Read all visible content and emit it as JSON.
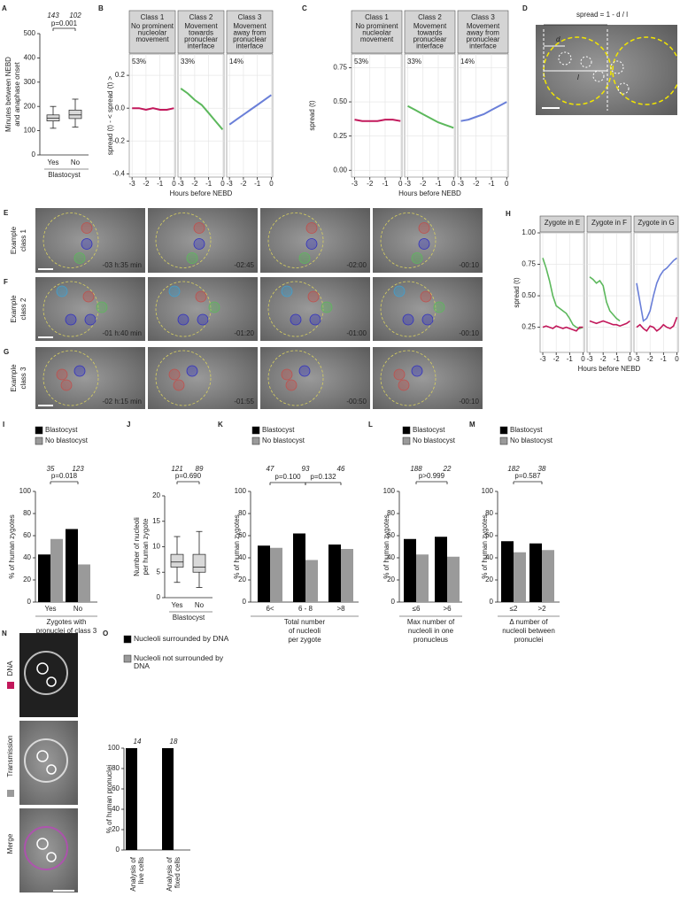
{
  "panels": {
    "A": {
      "letter": "A",
      "ylabel": [
        "Minutes between NEBD",
        "and anaphase onset"
      ],
      "xlabel": "Blastocyst",
      "categories": [
        "Yes",
        "No"
      ],
      "n": [
        143,
        102
      ],
      "p": "p=0.001",
      "ylim": [
        0,
        500
      ],
      "yticks": [
        0,
        100,
        200,
        300,
        400,
        500
      ],
      "boxes": [
        {
          "min": 110,
          "q1": 140,
          "median": 152,
          "q3": 165,
          "max": 200
        },
        {
          "min": 115,
          "q1": 150,
          "median": 165,
          "q3": 185,
          "max": 230
        }
      ]
    },
    "B": {
      "letter": "B",
      "ylabel": "spread (t) - < spread (t) >",
      "xlabel": "Hours before NEBD",
      "xlim": [
        -3.2,
        0.1
      ],
      "ylim": [
        -0.42,
        0.33
      ],
      "xticks": [
        -3,
        -2,
        -1,
        0
      ],
      "yticks": [
        -0.4,
        -0.2,
        {
          "value": 0,
          "label": "0.0"
        },
        0.2
      ],
      "facets": [
        {
          "title": "Class 1",
          "subtitle": [
            "No prominent",
            "nucleolar",
            "movement"
          ],
          "percent": "53%",
          "series": [
            {
              "color": "#c2185b",
              "x": [
                -3,
                -2.5,
                -2,
                -1.5,
                -1,
                -0.5,
                0
              ],
              "values": [
                0.0,
                0.0,
                -0.01,
                0.0,
                -0.01,
                -0.01,
                0.0
              ]
            }
          ]
        },
        {
          "title": "Class 2",
          "subtitle": [
            "Movement",
            "towards",
            "pronuclear",
            "interface"
          ],
          "percent": "33%",
          "series": [
            {
              "color": "#5cb85c",
              "x": [
                -3,
                -2.5,
                -2,
                -1.5,
                -1,
                -0.5,
                0
              ],
              "values": [
                0.12,
                0.09,
                0.05,
                0.02,
                -0.03,
                -0.08,
                -0.13
              ]
            }
          ]
        },
        {
          "title": "Class 3",
          "subtitle": [
            "Movement",
            "away from",
            "pronuclear",
            "interface"
          ],
          "percent": "14%",
          "series": [
            {
              "color": "#6a7fd8",
              "x": [
                -3,
                -2.5,
                -2,
                -1.5,
                -1,
                -0.5,
                0
              ],
              "values": [
                -0.1,
                -0.07,
                -0.04,
                -0.01,
                0.02,
                0.05,
                0.08
              ]
            }
          ]
        }
      ]
    },
    "C": {
      "letter": "C",
      "ylabel": "spread (t)",
      "xlabel": "Hours before NEBD",
      "xlim": [
        -3.2,
        0.1
      ],
      "ylim": [
        -0.05,
        0.85
      ],
      "xticks": [
        -3,
        -2,
        -1,
        0
      ],
      "yticks": [
        {
          "value": 0,
          "label": "0.00"
        },
        0.25,
        {
          "value": 0.5,
          "label": "0.50"
        },
        0.75
      ],
      "facets": [
        {
          "title": "Class 1",
          "subtitle": [
            "No prominent",
            "nucleolar",
            "movement"
          ],
          "percent": "53%",
          "series": [
            {
              "color": "#c2185b",
              "x": [
                -3,
                -2.5,
                -2,
                -1.5,
                -1,
                -0.5,
                0
              ],
              "values": [
                0.37,
                0.36,
                0.36,
                0.36,
                0.37,
                0.37,
                0.36
              ]
            }
          ]
        },
        {
          "title": "Class 2",
          "subtitle": [
            "Movement",
            "towards",
            "pronuclear",
            "interface"
          ],
          "percent": "33%",
          "series": [
            {
              "color": "#5cb85c",
              "x": [
                -3,
                -2.5,
                -2,
                -1.5,
                -1,
                -0.5,
                0
              ],
              "values": [
                0.47,
                0.44,
                0.41,
                0.38,
                0.35,
                0.33,
                0.31
              ]
            }
          ]
        },
        {
          "title": "Class 3",
          "subtitle": [
            "Movement",
            "away from",
            "pronuclear",
            "interface"
          ],
          "percent": "14%",
          "series": [
            {
              "color": "#6a7fd8",
              "x": [
                -3,
                -2.5,
                -2,
                -1.5,
                -1,
                -0.5,
                0
              ],
              "values": [
                0.36,
                0.37,
                0.39,
                0.41,
                0.44,
                0.47,
                0.5
              ]
            }
          ]
        }
      ]
    },
    "D": {
      "letter": "D",
      "formula": "spread = 1 - d / l",
      "d": "d",
      "l": "l"
    },
    "E": {
      "letter": "E",
      "label": [
        "Example",
        "class 1"
      ],
      "label_color": "#c2185b",
      "timestamps": [
        "-03 h:35 min",
        "-02:45",
        "-02:00",
        "-00:10"
      ]
    },
    "F": {
      "letter": "F",
      "label": [
        "Example",
        "class 2"
      ],
      "label_color": "#5cb85c",
      "timestamps": [
        "-01 h:40 min",
        "-01:20",
        "-01:00",
        "-00:10"
      ]
    },
    "G": {
      "letter": "G",
      "label": [
        "Example",
        "class 3"
      ],
      "label_color": "#6a7fd8",
      "timestamps": [
        "-02 h:15 min",
        "-01:55",
        "-00:50",
        "-00:10"
      ]
    },
    "H": {
      "letter": "H",
      "ylabel": "spread (t)",
      "xlabel": "Hours before NEBD",
      "xlim": [
        -3.2,
        0.1
      ],
      "ylim": [
        0.05,
        1.0
      ],
      "xticks": [
        -3,
        -2,
        -1,
        0
      ],
      "yticks": [
        0.25,
        {
          "value": 0.5,
          "label": "0.50"
        },
        0.75,
        {
          "value": 1,
          "label": "1.00"
        }
      ],
      "facets": [
        {
          "title": "Zygote in E",
          "series": [
            {
              "color": "#5cb85c",
              "x": [
                -3,
                -2.75,
                -2.5,
                -2.25,
                -2,
                -1.75,
                -1.5,
                -1.25,
                -1,
                -0.75,
                -0.5,
                -0.25,
                0
              ],
              "values": [
                0.8,
                0.72,
                0.62,
                0.5,
                0.42,
                0.4,
                0.38,
                0.36,
                0.32,
                0.27,
                0.25,
                0.24,
                0.25
              ]
            },
            {
              "color": "#c2185b",
              "x": [
                -3,
                -2.75,
                -2.5,
                -2.25,
                -2,
                -1.75,
                -1.5,
                -1.25,
                -1,
                -0.75,
                -0.5,
                -0.25,
                0
              ],
              "values": [
                0.25,
                0.26,
                0.25,
                0.24,
                0.26,
                0.25,
                0.24,
                0.25,
                0.24,
                0.23,
                0.22,
                0.25,
                0.25
              ]
            }
          ]
        },
        {
          "title": "Zygote in F",
          "series": [
            {
              "color": "#5cb85c",
              "x": [
                -3,
                -2.75,
                -2.5,
                -2.25,
                -2,
                -1.75,
                -1.5,
                -1.25,
                -1,
                -0.75,
                -0.5,
                -0.25,
                0
              ],
              "values": [
                0.65,
                0.63,
                0.6,
                0.62,
                0.58,
                0.45,
                0.38,
                0.35,
                0.32,
                0.3,
                null,
                null,
                null
              ]
            },
            {
              "color": "#c2185b",
              "x": [
                -3,
                -2.75,
                -2.5,
                -2.25,
                -2,
                -1.75,
                -1.5,
                -1.25,
                -1,
                -0.75,
                -0.5,
                -0.25,
                0
              ],
              "values": [
                0.3,
                0.29,
                0.28,
                0.29,
                0.3,
                0.29,
                0.28,
                0.27,
                0.27,
                0.26,
                0.27,
                0.28,
                0.3
              ]
            }
          ]
        },
        {
          "title": "Zygote in G",
          "series": [
            {
              "color": "#6a7fd8",
              "x": [
                -3,
                -2.75,
                -2.5,
                -2.25,
                -2,
                -1.75,
                -1.5,
                -1.25,
                -1,
                -0.75,
                -0.5,
                -0.25,
                0
              ],
              "values": [
                0.6,
                0.45,
                0.3,
                0.32,
                0.38,
                0.5,
                0.6,
                0.66,
                0.7,
                0.72,
                0.75,
                0.78,
                0.8
              ]
            },
            {
              "color": "#c2185b",
              "x": [
                -3,
                -2.75,
                -2.5,
                -2.25,
                -2,
                -1.75,
                -1.5,
                -1.25,
                -1,
                -0.75,
                -0.5,
                -0.25,
                0
              ],
              "values": [
                0.25,
                0.27,
                0.24,
                0.22,
                0.26,
                0.25,
                0.22,
                0.24,
                0.27,
                0.25,
                0.24,
                0.26,
                0.33
              ]
            }
          ]
        }
      ]
    },
    "I": {
      "letter": "I",
      "ylabel": "% of human zygotes",
      "xlabel": [
        "Zygotes with",
        "pronuclei of class 3"
      ],
      "categories": [
        "Yes",
        "No"
      ],
      "n": [
        35,
        123
      ],
      "p": [
        "p=0.018"
      ],
      "ylim": [
        0,
        100
      ],
      "yticks": [
        0,
        20,
        40,
        60,
        80,
        100
      ],
      "series": [
        {
          "name": "Blastocyst",
          "color": "#000000",
          "values": [
            43,
            66
          ]
        },
        {
          "name": "No blastocyst",
          "color": "#9a9a9a",
          "values": [
            57,
            34
          ]
        }
      ]
    },
    "J": {
      "letter": "J",
      "ylabel": [
        "Number of nucleoli",
        "per human zygote"
      ],
      "xlabel": "Blastocyst",
      "categories": [
        "Yes",
        "No"
      ],
      "n": [
        121,
        89
      ],
      "p": "p=0.690",
      "ylim": [
        0,
        20
      ],
      "yticks": [
        0,
        5,
        10,
        15,
        20
      ],
      "boxes": [
        {
          "min": 3,
          "q1": 6,
          "median": 7,
          "q3": 8.5,
          "max": 12
        },
        {
          "min": 2,
          "q1": 5,
          "median": 6,
          "q3": 8.5,
          "max": 13
        }
      ]
    },
    "K": {
      "letter": "K",
      "ylabel": "% of human zygotes",
      "xlabel": [
        "Total number",
        "of nucleoli",
        "per zygote"
      ],
      "categories": [
        "6<",
        "6 - 8",
        ">8"
      ],
      "n": [
        47,
        93,
        46
      ],
      "p": [
        "p=0.100",
        "p=0.132"
      ],
      "ylim": [
        0,
        100
      ],
      "yticks": [
        0,
        20,
        40,
        60,
        80,
        100
      ],
      "series": [
        {
          "name": "Blastocyst",
          "color": "#000000",
          "values": [
            51,
            62,
            52
          ]
        },
        {
          "name": "No blastocyst",
          "color": "#9a9a9a",
          "values": [
            49,
            38,
            48
          ]
        }
      ]
    },
    "L": {
      "letter": "L",
      "ylabel": "% of human zygotes",
      "xlabel": [
        "Max number of",
        "nucleoli in one",
        "pronucleus"
      ],
      "categories": [
        "≤6",
        ">6"
      ],
      "n": [
        188,
        22
      ],
      "p": [
        "p>0.999"
      ],
      "ylim": [
        0,
        100
      ],
      "yticks": [
        0,
        20,
        40,
        60,
        80,
        100
      ],
      "series": [
        {
          "name": "Blastocyst",
          "color": "#000000",
          "values": [
            57,
            59
          ]
        },
        {
          "name": "No blastocyst",
          "color": "#9a9a9a",
          "values": [
            43,
            41
          ]
        }
      ]
    },
    "M": {
      "letter": "M",
      "ylabel": "% of human zygotes",
      "xlabel": [
        "Δ number of",
        "nucleoli between",
        "pronuclei"
      ],
      "categories": [
        "≤2",
        ">2"
      ],
      "n": [
        182,
        38
      ],
      "p": [
        "p=0.587"
      ],
      "ylim": [
        0,
        100
      ],
      "yticks": [
        0,
        20,
        40,
        60,
        80,
        100
      ],
      "series": [
        {
          "name": "Blastocyst",
          "color": "#000000",
          "values": [
            55,
            53
          ]
        },
        {
          "name": "No blastocyst",
          "color": "#9a9a9a",
          "values": [
            45,
            47
          ]
        }
      ]
    },
    "N": {
      "letter": "N",
      "channels": [
        "DNA",
        "Transmission",
        "Merge"
      ]
    },
    "O": {
      "letter": "O",
      "ylabel": "% of human pronuclei",
      "categories": [
        [
          "Analysis of",
          "live cells"
        ],
        [
          "Analysis of",
          "fixed cells"
        ]
      ],
      "n": [
        14,
        18
      ],
      "ylim": [
        0,
        100
      ],
      "yticks": [
        0,
        20,
        40,
        60,
        80,
        100
      ],
      "series": [
        {
          "name": "Nucleoli surrounded by DNA",
          "color": "#000000",
          "values": [
            100,
            100
          ]
        },
        {
          "name": "Nucleoli not surrounded by DNA",
          "color": "#9a9a9a",
          "values": [
            0,
            0
          ]
        }
      ]
    }
  }
}
